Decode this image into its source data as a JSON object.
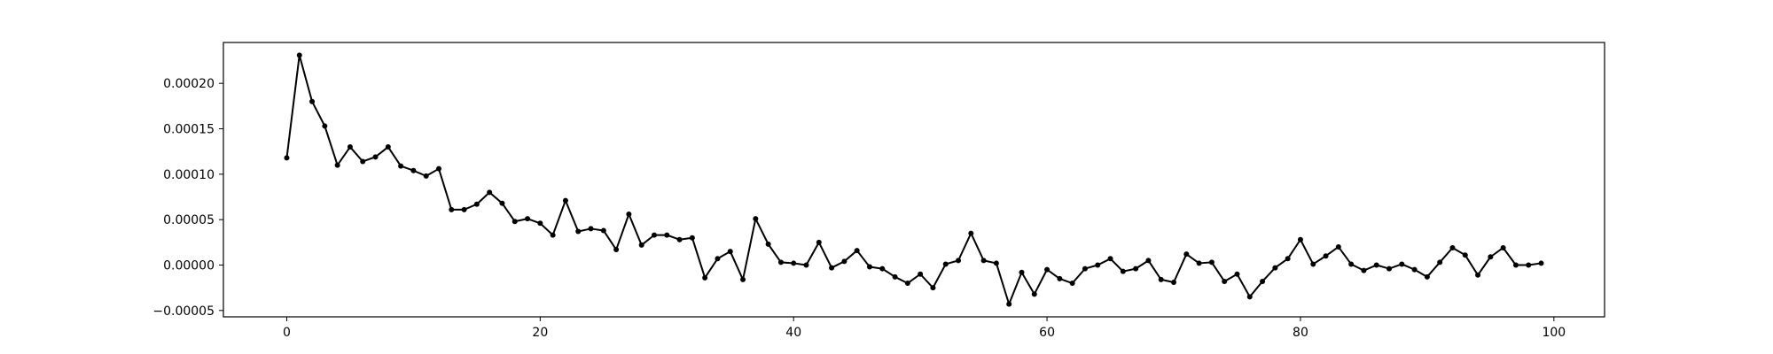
{
  "chart_data": {
    "type": "line",
    "title": "",
    "xlabel": "",
    "ylabel": "",
    "xlim": [
      -5,
      104
    ],
    "ylim": [
      -5.7e-05,
      0.000245
    ],
    "x_ticks": [
      0,
      20,
      40,
      60,
      80,
      100
    ],
    "x_tick_labels": [
      "0",
      "20",
      "40",
      "60",
      "80",
      "100"
    ],
    "y_ticks": [
      -5e-05,
      0.0,
      5e-05,
      0.0001,
      0.00015,
      0.0002
    ],
    "y_tick_labels": [
      "−0.00005",
      "0.00000",
      "0.00005",
      "0.00010",
      "0.00015",
      "0.00020"
    ],
    "grid": false,
    "legend": "none",
    "line_color": "#000000",
    "marker": "dot",
    "series": [
      {
        "x": [
          0,
          1,
          2,
          3,
          4,
          5,
          6,
          7,
          8,
          9,
          10,
          11,
          12,
          13,
          14,
          15,
          16,
          17,
          18,
          19,
          20,
          21,
          22,
          23,
          24,
          25,
          26,
          27,
          28,
          29,
          30,
          31,
          32,
          33,
          34,
          35,
          36,
          37,
          38,
          39,
          40,
          41,
          42,
          43,
          44,
          45,
          46,
          47,
          48,
          49,
          50,
          51,
          52,
          53,
          54,
          55,
          56,
          57,
          58,
          59,
          60,
          61,
          62,
          63,
          64,
          65,
          66,
          67,
          68,
          69,
          70,
          71,
          72,
          73,
          74,
          75,
          76,
          77,
          78,
          79,
          80,
          81,
          82,
          83,
          84,
          85,
          86,
          87,
          88,
          89,
          90,
          91,
          92,
          93,
          94,
          95,
          96,
          97,
          98,
          99
        ],
        "values": [
          0.000118,
          0.000231,
          0.00018,
          0.000153,
          0.00011,
          0.00013,
          0.000114,
          0.000119,
          0.00013,
          0.000109,
          0.000104,
          9.8e-05,
          0.000106,
          6.1e-05,
          6.1e-05,
          6.7e-05,
          8e-05,
          6.8e-05,
          4.8e-05,
          5.1e-05,
          4.6e-05,
          3.3e-05,
          7.1e-05,
          3.7e-05,
          4e-05,
          3.8e-05,
          1.7e-05,
          5.6e-05,
          2.2e-05,
          3.3e-05,
          3.3e-05,
          2.8e-05,
          3e-05,
          -1.4e-05,
          7e-06,
          1.5e-05,
          -1.6e-05,
          5.1e-05,
          2.3e-05,
          3e-06,
          2e-06,
          0.0,
          2.5e-05,
          -3e-06,
          4e-06,
          1.6e-05,
          -2e-06,
          -4e-06,
          -1.3e-05,
          -2e-05,
          -1e-05,
          -2.5e-05,
          1e-06,
          5e-06,
          3.5e-05,
          5e-06,
          2e-06,
          -4.3e-05,
          -8e-06,
          -3.2e-05,
          -5e-06,
          -1.5e-05,
          -2e-05,
          -4e-06,
          0.0,
          7e-06,
          -7e-06,
          -4e-06,
          5e-06,
          -1.6e-05,
          -1.9e-05,
          1.2e-05,
          2e-06,
          3e-06,
          -1.8e-05,
          -1e-05,
          -3.5e-05,
          -1.8e-05,
          -3e-06,
          7e-06,
          2.8e-05,
          1e-06,
          1e-05,
          2e-05,
          1e-06,
          -6e-06,
          0.0,
          -4e-06,
          1e-06,
          -5e-06,
          -1.3e-05,
          3e-06,
          1.9e-05,
          1.1e-05,
          -1.1e-05,
          9e-06,
          1.9e-05,
          0.0,
          0.0,
          2e-06
        ]
      }
    ]
  }
}
